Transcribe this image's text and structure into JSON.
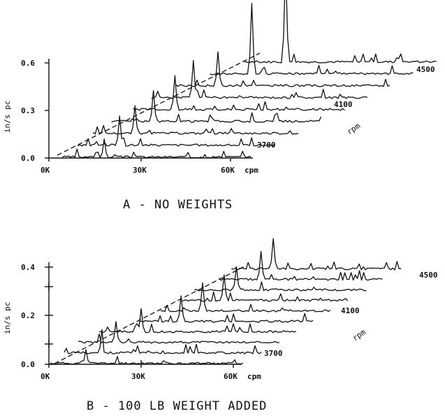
{
  "chart_data": [
    {
      "type": "line",
      "title": "A - NO WEIGHTS",
      "ylabel": "in/s pc",
      "xlabel": "cpm",
      "ylim": [
        0.0,
        0.6
      ],
      "yticks": [
        "0.6",
        "0.3",
        "0.0"
      ],
      "xticks": [
        "0K",
        "30K",
        "60K"
      ],
      "x_unit": "cpm",
      "speed_axis_label": "rpm",
      "speed_labels": [
        "3700",
        "4100",
        "4500"
      ],
      "series": [
        {
          "rpm": 3700,
          "peak_cpm": 18000,
          "peak_in_s": 0.12
        },
        {
          "rpm": 3800,
          "peak_cpm": 23000,
          "peak_in_s": 0.19
        },
        {
          "rpm": 3900,
          "peak_cpm": 28000,
          "peak_in_s": 0.18
        },
        {
          "rpm": 4000,
          "peak_cpm": 34000,
          "peak_in_s": 0.2
        },
        {
          "rpm": 4100,
          "peak_cpm": 41000,
          "peak_in_s": 0.22
        },
        {
          "rpm": 4200,
          "peak_cpm": 47000,
          "peak_in_s": 0.24
        },
        {
          "rpm": 4300,
          "peak_cpm": 55000,
          "peak_in_s": 0.22
        },
        {
          "rpm": 4400,
          "peak_cpm": 66000,
          "peak_in_s": 0.45
        },
        {
          "rpm": 4500,
          "peak_cpm": 77000,
          "peak_in_s": 0.62
        }
      ]
    },
    {
      "type": "line",
      "title": "B - 100 LB WEIGHT ADDED",
      "ylabel": "in/s pc",
      "xlabel": "cpm",
      "ylim": [
        0.0,
        0.4
      ],
      "yticks": [
        "0.4",
        "0.2",
        "0.0"
      ],
      "xticks": [
        "0K",
        "30K",
        "60K"
      ],
      "x_unit": "cpm",
      "speed_axis_label": "rpm",
      "speed_labels": [
        "3700",
        "4100",
        "4500"
      ],
      "series": [
        {
          "rpm": 3700,
          "peak_cpm": 12000,
          "peak_in_s": 0.06
        },
        {
          "rpm": 3800,
          "peak_cpm": 17000,
          "peak_in_s": 0.1
        },
        {
          "rpm": 3900,
          "peak_cpm": 22000,
          "peak_in_s": 0.09
        },
        {
          "rpm": 4000,
          "peak_cpm": 30000,
          "peak_in_s": 0.1
        },
        {
          "rpm": 4100,
          "peak_cpm": 43000,
          "peak_in_s": 0.11
        },
        {
          "rpm": 4200,
          "peak_cpm": 50000,
          "peak_in_s": 0.12
        },
        {
          "rpm": 4300,
          "peak_cpm": 57000,
          "peak_in_s": 0.11
        },
        {
          "rpm": 4400,
          "peak_cpm": 61000,
          "peak_in_s": 0.1
        },
        {
          "rpm": 4500,
          "peak_cpm": 69000,
          "peak_in_s": 0.12
        },
        {
          "rpm": 4600,
          "peak_cpm": 73000,
          "peak_in_s": 0.13
        }
      ]
    }
  ]
}
